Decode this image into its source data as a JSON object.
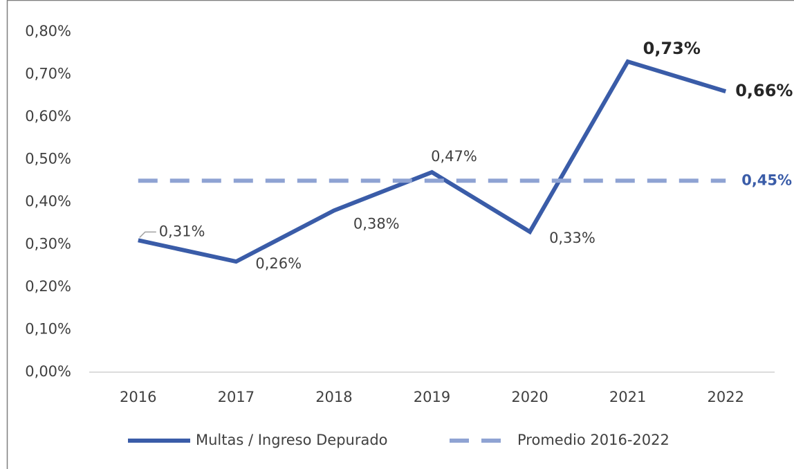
{
  "chart_data": {
    "type": "line",
    "categories": [
      "2016",
      "2017",
      "2018",
      "2019",
      "2020",
      "2021",
      "2022"
    ],
    "series": [
      {
        "name": "Multas / Ingreso Depurado",
        "color": "#3a5ca8",
        "dash": false,
        "values": [
          0.31,
          0.26,
          0.38,
          0.47,
          0.33,
          0.73,
          0.66
        ],
        "value_labels": [
          "0,31%",
          "0,26%",
          "0,38%",
          "0,47%",
          "0,33%",
          "0,73%",
          "0,66%"
        ]
      },
      {
        "name": "Promedio 2016-2022",
        "color": "#8fa3d3",
        "dash": true,
        "values": [
          0.45,
          0.45,
          0.45,
          0.45,
          0.45,
          0.45,
          0.45
        ],
        "value_labels": [
          null,
          null,
          null,
          null,
          null,
          null,
          "0,45%"
        ]
      }
    ],
    "ylim": [
      0,
      0.8
    ],
    "yticks": [
      {
        "value": 0,
        "label": "0,00%"
      },
      {
        "value": 0.1,
        "label": "0,10%"
      },
      {
        "value": 0.2,
        "label": "0,20%"
      },
      {
        "value": 0.3,
        "label": "0,30%"
      },
      {
        "value": 0.4,
        "label": "0,40%"
      },
      {
        "value": 0.5,
        "label": "0,50%"
      },
      {
        "value": 0.6,
        "label": "0,60%"
      },
      {
        "value": 0.7,
        "label": "0,70%"
      },
      {
        "value": 0.8,
        "label": "0,80%"
      }
    ],
    "grid": false,
    "legend": "bottom"
  }
}
